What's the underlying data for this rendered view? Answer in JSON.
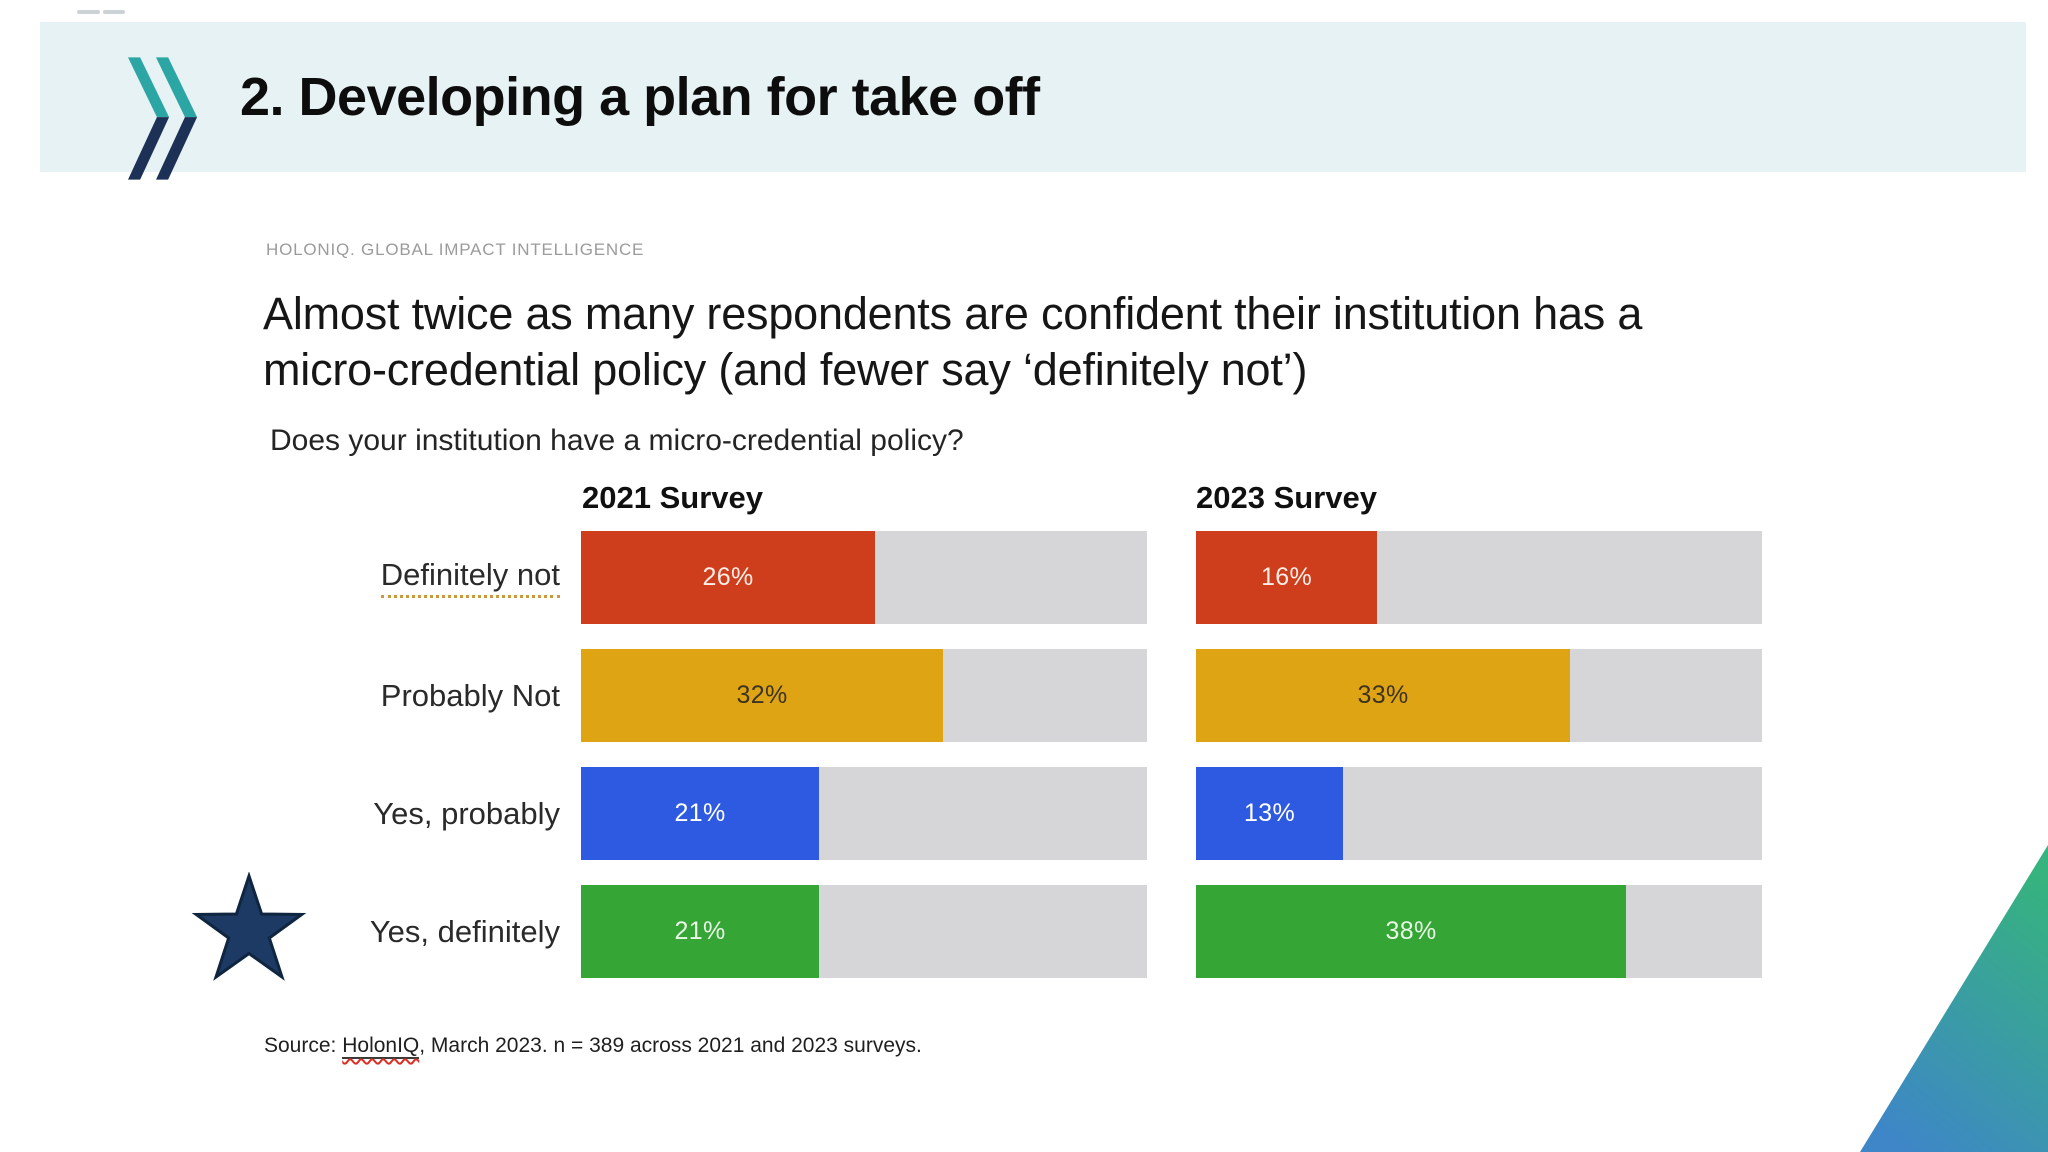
{
  "slide": {
    "title": "2. Developing a plan for take off"
  },
  "icons": {
    "logo": "oecd-chevrons-logo",
    "marker": "star-icon",
    "corner": "corner-accent-triangle"
  },
  "chart_panel": {
    "brand": "HOLONIQ. GLOBAL IMPACT INTELLIGENCE",
    "headline_lines": [
      "Almost twice as many respondents are confident their institution has a",
      "micro-credential policy (and fewer say ‘definitely not’)"
    ],
    "question": "Does your institution have a micro-credential policy?",
    "source_prefix": "Source: ",
    "source_link": "HolonIQ",
    "source_suffix": ", March 2023. n = 389 across 2021 and 2023 surveys."
  },
  "chart_data": {
    "type": "bar",
    "orientation": "horizontal",
    "categories": [
      "Definitely not",
      "Probably Not",
      "Yes, probably",
      "Yes, definitely"
    ],
    "series": [
      {
        "name": "2021 Survey",
        "values": [
          26,
          32,
          21,
          21
        ]
      },
      {
        "name": "2023 Survey",
        "values": [
          16,
          33,
          13,
          38
        ]
      }
    ],
    "unit": "%",
    "axis_max_pct": 50,
    "grid": false,
    "legend_position": "column-headers",
    "spellcheck_underline_category": "Definitely not",
    "highlighted_category": "Yes, definitely"
  },
  "colors": {
    "header_band": "#e6f2f4",
    "logo_teal": "#2ca6a4",
    "logo_navy": "#1d3156",
    "bar_colors": [
      "#ce3e1c",
      "#dfa413",
      "#2d5ae0",
      "#35a536"
    ],
    "value_text_colors": [
      "#fdeee8",
      "#3c3420",
      "#ffffff",
      "#e9f6e5"
    ],
    "track_gray": "#d6d6d8",
    "star_navy": "#1c3a63",
    "corner_gradient_top": "#36b37e",
    "corner_gradient_bottom": "#3e86c8"
  }
}
